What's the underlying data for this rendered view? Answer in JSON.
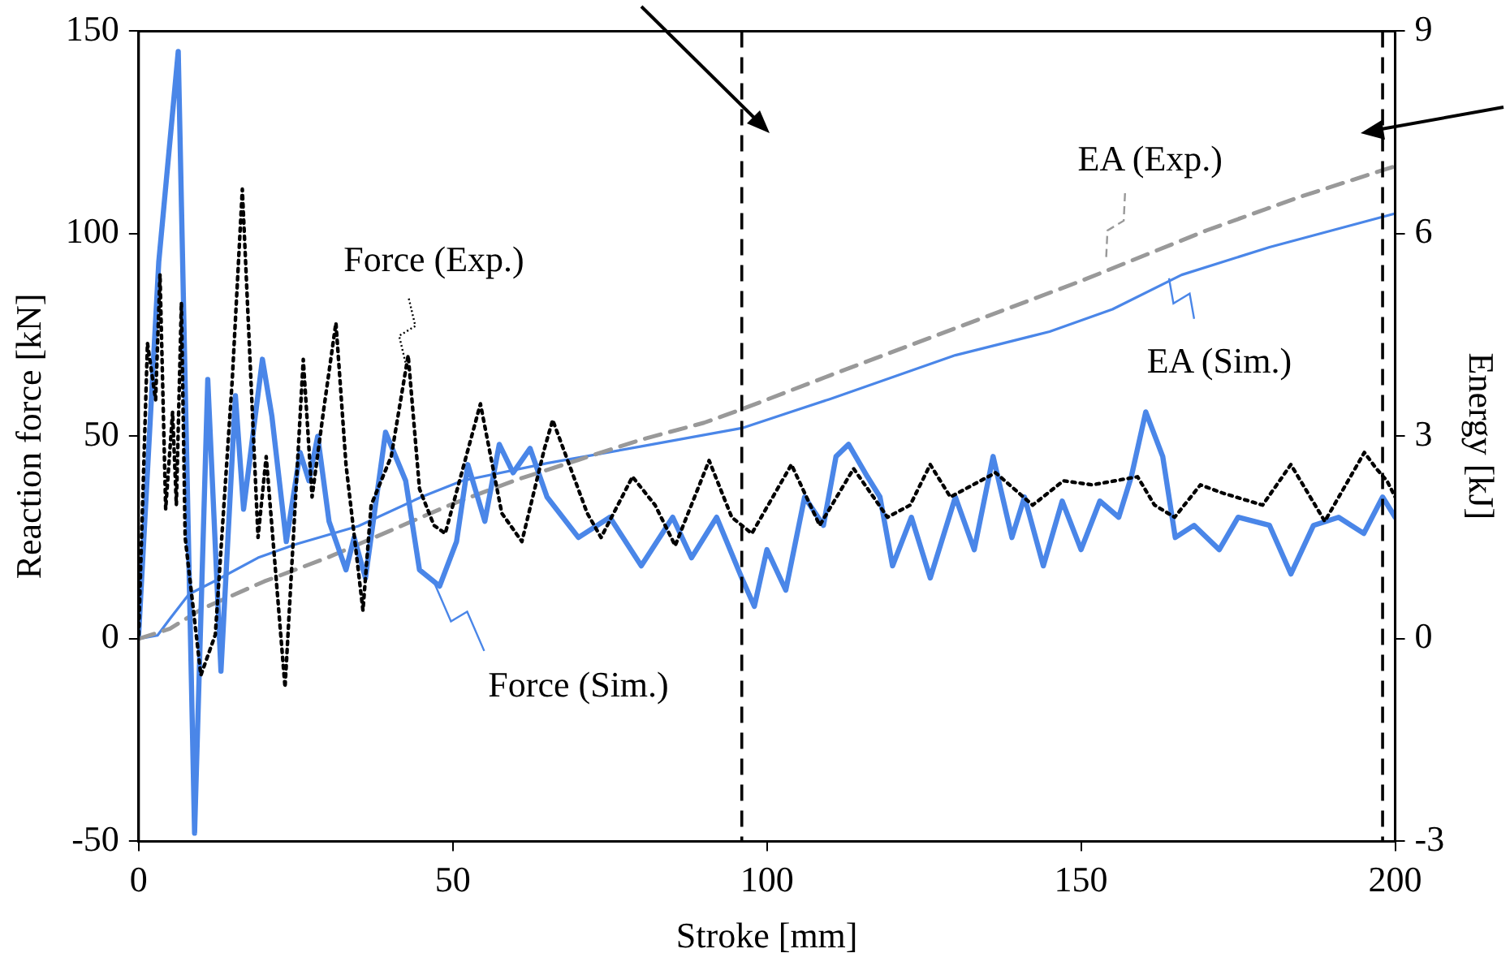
{
  "chart_data": {
    "type": "line",
    "xlabel": "Stroke [mm]",
    "ylabel": "Reaction force [kN]",
    "y2label": "Energy [kJ]",
    "xlim": [
      0,
      200
    ],
    "xticks": [
      0,
      50,
      100,
      150,
      200
    ],
    "ylim": [
      -50,
      150
    ],
    "yticks": [
      -50,
      0,
      50,
      100,
      150
    ],
    "y2lim": [
      -3,
      9
    ],
    "y2ticks": [
      -3,
      0,
      3,
      6,
      9
    ],
    "grid": false,
    "legend": "right",
    "marker": "none",
    "ref_lines": [
      {
        "axis": "x",
        "value": 96,
        "color": "#000000",
        "line_style": "dashed"
      },
      {
        "axis": "x",
        "value": 198,
        "color": "#000000",
        "line_style": "dashed"
      }
    ],
    "series": [
      {
        "name": "Force (Exp.)",
        "color": "#000000",
        "line_style": "dotted",
        "x": [
          0,
          1.4,
          2.7,
          3.4,
          4.3,
          5.4,
          6,
          6.8,
          7.4,
          9.9,
          12.2,
          14.9,
          16.5,
          19,
          20.3,
          23.3,
          26.2,
          27.6,
          29.4,
          31.4,
          33,
          35.7,
          37,
          40.2,
          42.9,
          44.7,
          47,
          48.8,
          54.4,
          57.8,
          61,
          64.6,
          65.9,
          71.4,
          73.6,
          78.6,
          82.2,
          85.4,
          90.8,
          94.4,
          97.6,
          103.9,
          108.4,
          113.8,
          119.2,
          122.8,
          126,
          129.2,
          136.4,
          142.3,
          147.2,
          151.8,
          159,
          161.7,
          164.9,
          169,
          172.5,
          178.9,
          183.4,
          188.8,
          195.1,
          197,
          198.7,
          200
        ],
        "values": [
          1,
          73,
          59,
          90,
          32,
          56,
          33,
          83,
          25,
          -9,
          1,
          64,
          111,
          25,
          45,
          -12,
          69,
          35,
          56,
          78,
          43,
          7,
          33,
          45,
          70,
          37,
          28,
          26,
          58,
          31,
          24,
          47,
          54,
          31,
          25,
          40,
          33,
          23,
          44,
          30,
          26,
          43,
          28,
          42,
          30,
          33,
          43,
          35,
          41,
          33,
          39,
          38,
          40,
          33,
          30,
          38,
          36,
          33,
          43,
          29,
          46,
          42,
          39,
          35
        ]
      },
      {
        "name": "Force (Sim.)",
        "color": "#4a86e8",
        "line_style": "solid",
        "x": [
          0,
          3.2,
          6.3,
          8.9,
          11,
          13.1,
          15.4,
          16.7,
          19.7,
          21.2,
          23.5,
          25.7,
          27.1,
          28.5,
          30.3,
          33,
          34.3,
          36.1,
          39.3,
          42.5,
          44.7,
          47.9,
          50.6,
          52.4,
          55.1,
          57.4,
          59.6,
          62.3,
          65,
          70,
          75,
          80,
          85,
          88,
          92,
          96,
          98,
          100,
          103,
          106,
          109,
          111,
          113,
          116,
          118,
          120,
          123,
          126,
          130,
          133,
          136,
          139,
          141,
          144,
          147,
          150,
          153,
          156,
          158,
          160.3,
          163,
          165,
          168,
          172,
          175,
          180,
          183.4,
          187,
          191,
          195,
          198,
          200
        ],
        "values": [
          1,
          93,
          145,
          -48,
          64,
          -8,
          60,
          32,
          69,
          55,
          24,
          46,
          39,
          50,
          29,
          17,
          25,
          15,
          51,
          39,
          17,
          13,
          24,
          43,
          29,
          48,
          41,
          47,
          35,
          25,
          30,
          18,
          30,
          20,
          30,
          15,
          8,
          22,
          12,
          35,
          28,
          45,
          48,
          40,
          35,
          18,
          30,
          15,
          35,
          22,
          45,
          25,
          35,
          18,
          34,
          22,
          34,
          30,
          40,
          56,
          45,
          25,
          28,
          22,
          30,
          28,
          16,
          28,
          30,
          26,
          35,
          30
        ]
      },
      {
        "name": "EA (Exp.)",
        "color": "#999999",
        "line_style": "dashed",
        "axis": "y2",
        "x": [
          0,
          5,
          10,
          20,
          30,
          40,
          50,
          60,
          70,
          80,
          90,
          96,
          110,
          130,
          150,
          170,
          185,
          200
        ],
        "values": [
          0,
          0.15,
          0.44,
          0.85,
          1.2,
          1.6,
          2,
          2.35,
          2.65,
          2.95,
          3.2,
          3.4,
          3.9,
          4.6,
          5.3,
          6.05,
          6.55,
          7
        ]
      },
      {
        "name": "EA (Sim.)",
        "color": "#4a86e8",
        "line_style": "solid",
        "axis": "y2",
        "x": [
          0,
          3,
          5,
          8,
          12,
          19,
          25,
          35,
          45,
          51.5,
          65,
          80,
          96,
          110,
          130,
          145,
          155,
          166,
          180,
          200
        ],
        "values": [
          0,
          0.05,
          0.3,
          0.66,
          0.85,
          1.2,
          1.4,
          1.67,
          2.1,
          2.34,
          2.6,
          2.85,
          3.12,
          3.55,
          4.2,
          4.55,
          4.88,
          5.39,
          5.8,
          6.3
        ]
      }
    ]
  }
}
